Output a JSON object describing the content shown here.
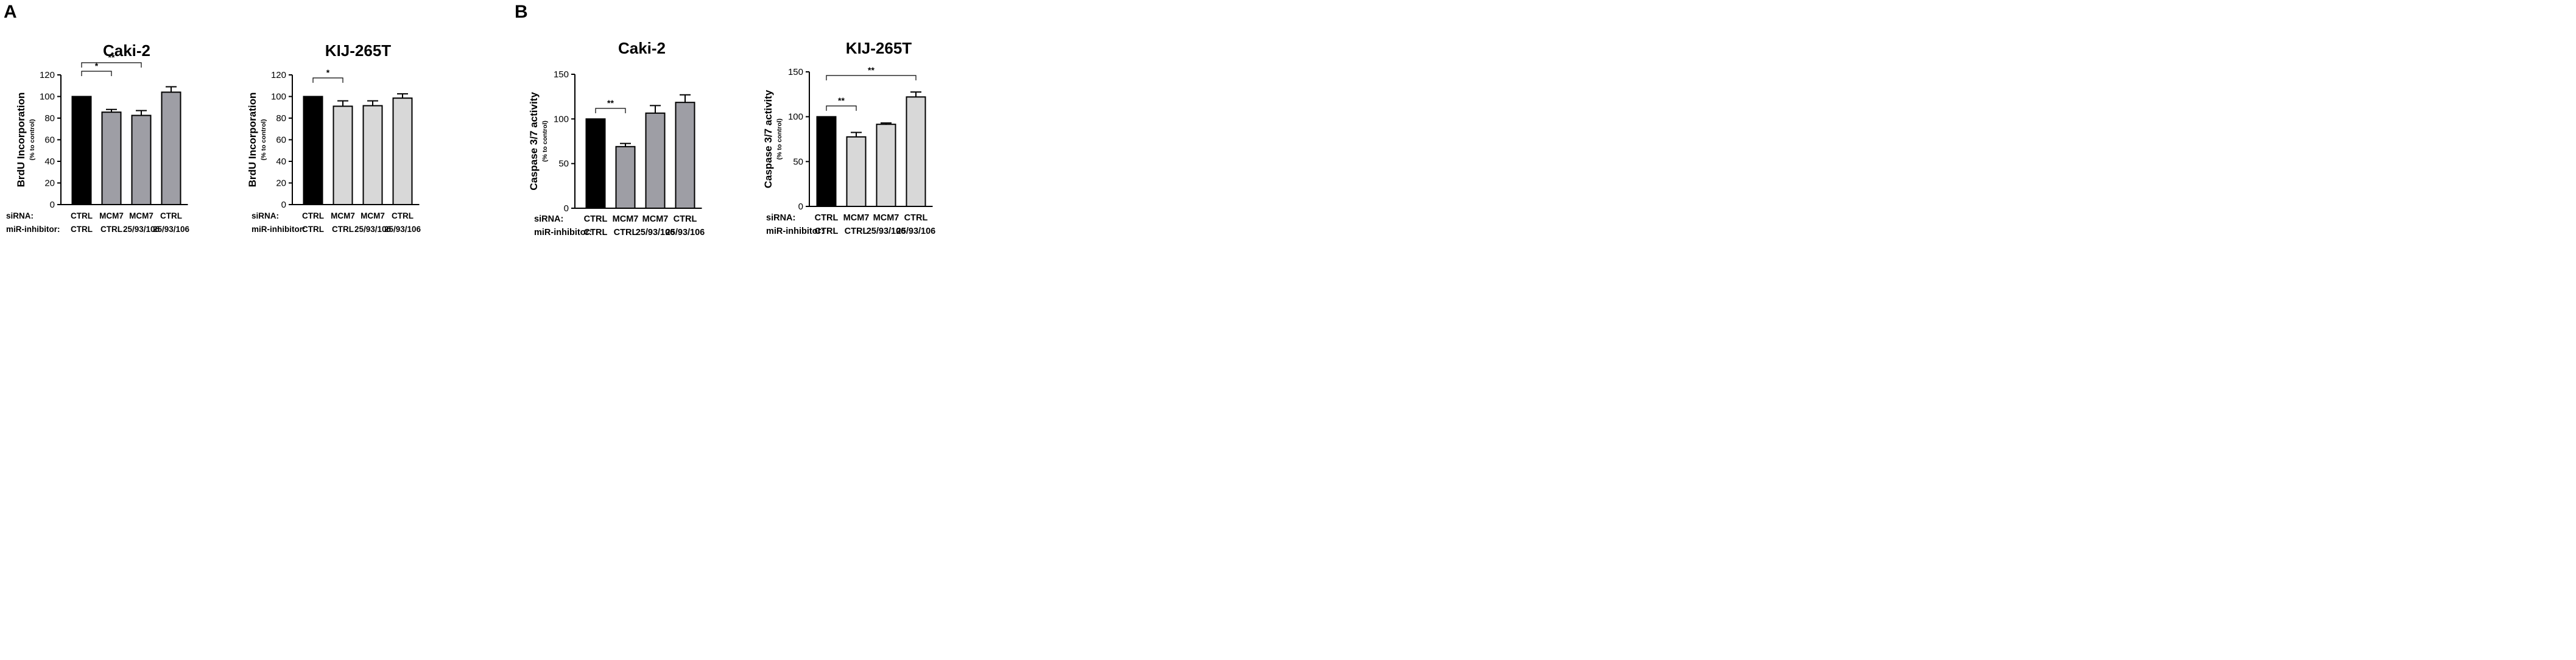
{
  "panels": [
    {
      "letter": "A"
    },
    {
      "letter": "B"
    }
  ],
  "chart_data": [
    {
      "type": "bar",
      "panel": "A",
      "title": "Caki-2",
      "ylabel": "BrdU Incorporation",
      "ylabel_sub": "(% to control)",
      "ylim": [
        0,
        120
      ],
      "yticks": [
        0,
        20,
        40,
        60,
        80,
        100,
        120
      ],
      "row_labels": [
        "siRNA:",
        "miR-inhibitor:"
      ],
      "categories": [
        {
          "sirna": "CTRL",
          "inhibitor": "CTRL"
        },
        {
          "sirna": "MCM7",
          "inhibitor": "CTRL"
        },
        {
          "sirna": "MCM7",
          "inhibitor": "25/93/106"
        },
        {
          "sirna": "CTRL",
          "inhibitor": "25/93/106"
        }
      ],
      "values": [
        100,
        85.5,
        82.5,
        104
      ],
      "errors": [
        0,
        2.5,
        4.5,
        5
      ],
      "bar_colors": [
        "#000000",
        "#9e9ea5",
        "#9e9ea5",
        "#9e9ea5"
      ],
      "significance": [
        {
          "from": 0,
          "to": 1,
          "label": "*",
          "level": 1
        },
        {
          "from": 0,
          "to": 2,
          "label": "**",
          "level": 2
        }
      ]
    },
    {
      "type": "bar",
      "panel": "A",
      "title": "KIJ-265T",
      "ylabel": "BrdU Incorporation",
      "ylabel_sub": "(% to control)",
      "ylim": [
        0,
        120
      ],
      "yticks": [
        0,
        20,
        40,
        60,
        80,
        100,
        120
      ],
      "row_labels": [
        "siRNA:",
        "miR-inhibitor:"
      ],
      "categories": [
        {
          "sirna": "CTRL",
          "inhibitor": "CTRL"
        },
        {
          "sirna": "MCM7",
          "inhibitor": "CTRL"
        },
        {
          "sirna": "MCM7",
          "inhibitor": "25/93/106"
        },
        {
          "sirna": "CTRL",
          "inhibitor": "25/93/106"
        }
      ],
      "values": [
        100,
        91,
        91.5,
        98.5
      ],
      "errors": [
        0,
        5,
        4.5,
        4
      ],
      "bar_colors": [
        "#000000",
        "#d8d8d8",
        "#d8d8d8",
        "#d8d8d8"
      ],
      "significance": [
        {
          "from": 0,
          "to": 1,
          "label": "*",
          "level": 1
        }
      ]
    },
    {
      "type": "bar",
      "panel": "B",
      "title": "Caki-2",
      "ylabel": "Caspase 3/7 activity",
      "ylabel_sub": "(% to control)",
      "ylim": [
        0,
        150
      ],
      "yticks": [
        0,
        50,
        100,
        150
      ],
      "row_labels": [
        "siRNA:",
        "miR-inhibitor:"
      ],
      "categories": [
        {
          "sirna": "CTRL",
          "inhibitor": "CTRL"
        },
        {
          "sirna": "MCM7",
          "inhibitor": "CTRL"
        },
        {
          "sirna": "MCM7",
          "inhibitor": "25/93/106"
        },
        {
          "sirna": "CTRL",
          "inhibitor": "25/93/106"
        }
      ],
      "values": [
        100,
        69,
        106.5,
        118.5
      ],
      "errors": [
        0,
        3.5,
        8.5,
        8.5
      ],
      "bar_colors": [
        "#000000",
        "#9e9ea5",
        "#9e9ea5",
        "#9e9ea5"
      ],
      "significance": [
        {
          "from": 0,
          "to": 1,
          "label": "**",
          "level": 1
        }
      ]
    },
    {
      "type": "bar",
      "panel": "B",
      "title": "KIJ-265T",
      "ylabel": "Caspase 3/7 activity",
      "ylabel_sub": "(% to control)",
      "ylim": [
        0,
        150
      ],
      "yticks": [
        0,
        50,
        100,
        150
      ],
      "row_labels": [
        "siRNA:",
        "miR-inhibitor:"
      ],
      "categories": [
        {
          "sirna": "CTRL",
          "inhibitor": "CTRL"
        },
        {
          "sirna": "MCM7",
          "inhibitor": "CTRL"
        },
        {
          "sirna": "MCM7",
          "inhibitor": "25/93/106"
        },
        {
          "sirna": "CTRL",
          "inhibitor": "25/93/106"
        }
      ],
      "values": [
        100,
        77.5,
        91.5,
        122
      ],
      "errors": [
        0,
        5,
        1.5,
        5.5
      ],
      "bar_colors": [
        "#000000",
        "#d8d8d8",
        "#d8d8d8",
        "#d8d8d8"
      ],
      "significance": [
        {
          "from": 0,
          "to": 1,
          "label": "**",
          "level": 1
        },
        {
          "from": 0,
          "to": 3,
          "label": "**",
          "level": 2
        }
      ]
    }
  ]
}
